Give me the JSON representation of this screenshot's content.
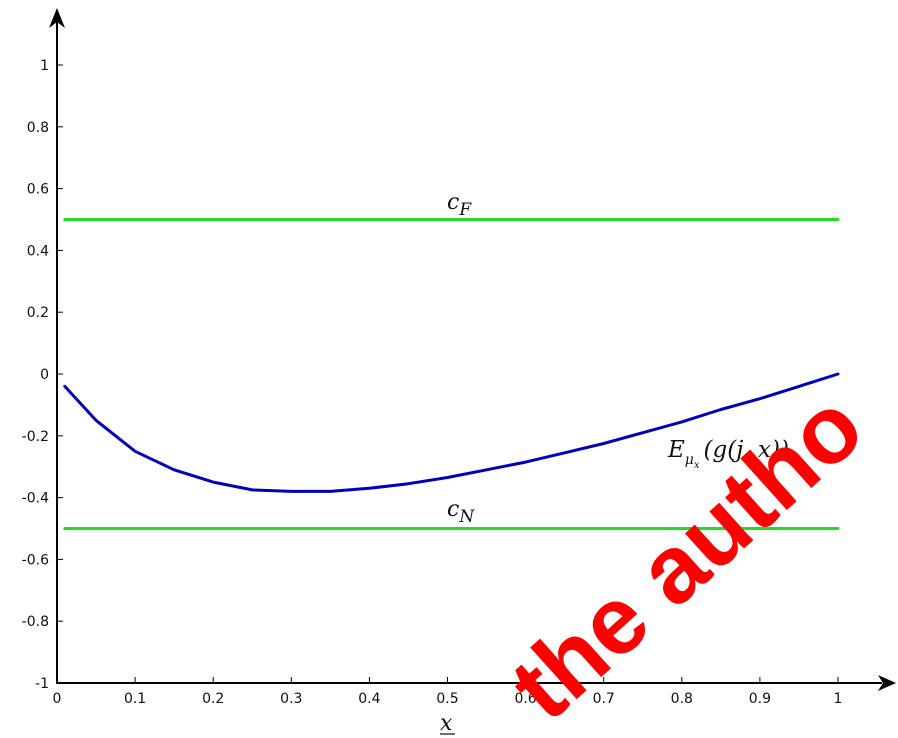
{
  "chart_data": {
    "type": "line",
    "xlabel": "x",
    "ylabel": "",
    "xlim": [
      0,
      1
    ],
    "ylim": [
      -1,
      1.1
    ],
    "x_ticks": [
      "0",
      "0.1",
      "0.2",
      "0.3",
      "0.4",
      "0.5",
      "0.6",
      "0.7",
      "0.8",
      "0.9",
      "1"
    ],
    "y_ticks": [
      "-1",
      "-0.8",
      "-0.6",
      "-0.4",
      "-0.2",
      "0",
      "0.2",
      "0.4",
      "0.6",
      "0.8",
      "1"
    ],
    "grid": false,
    "series": [
      {
        "name": "E_{μ_x}(g(j, x))",
        "color": "#0000bb",
        "x": [
          0.01,
          0.05,
          0.1,
          0.15,
          0.2,
          0.25,
          0.3,
          0.35,
          0.4,
          0.45,
          0.5,
          0.55,
          0.6,
          0.65,
          0.7,
          0.75,
          0.8,
          0.85,
          0.9,
          0.95,
          1.0
        ],
        "y": [
          -0.04,
          -0.15,
          -0.25,
          -0.31,
          -0.35,
          -0.375,
          -0.38,
          -0.38,
          -0.37,
          -0.355,
          -0.335,
          -0.31,
          -0.285,
          -0.255,
          -0.225,
          -0.19,
          -0.155,
          -0.115,
          -0.08,
          -0.04,
          0.0
        ]
      },
      {
        "name": "c_F",
        "color": "#22dd22",
        "x": [
          0.01,
          1.0
        ],
        "y": [
          0.5,
          0.5
        ]
      },
      {
        "name": "c_N",
        "color": "#22dd22",
        "x": [
          0.01,
          1.0
        ],
        "y": [
          -0.5,
          -0.5
        ]
      }
    ],
    "annotations": {
      "cf_label": {
        "base": "c",
        "sub": "F"
      },
      "cn_label": {
        "base": "c",
        "sub": "N"
      },
      "curve_label": {
        "E": "E",
        "mu": "μ",
        "x_sub": "x",
        "open": "(",
        "g": "g",
        "args": "(j, x)",
        "close": ")"
      }
    }
  },
  "watermark": {
    "text": "the autho",
    "color": "#ff0000"
  }
}
